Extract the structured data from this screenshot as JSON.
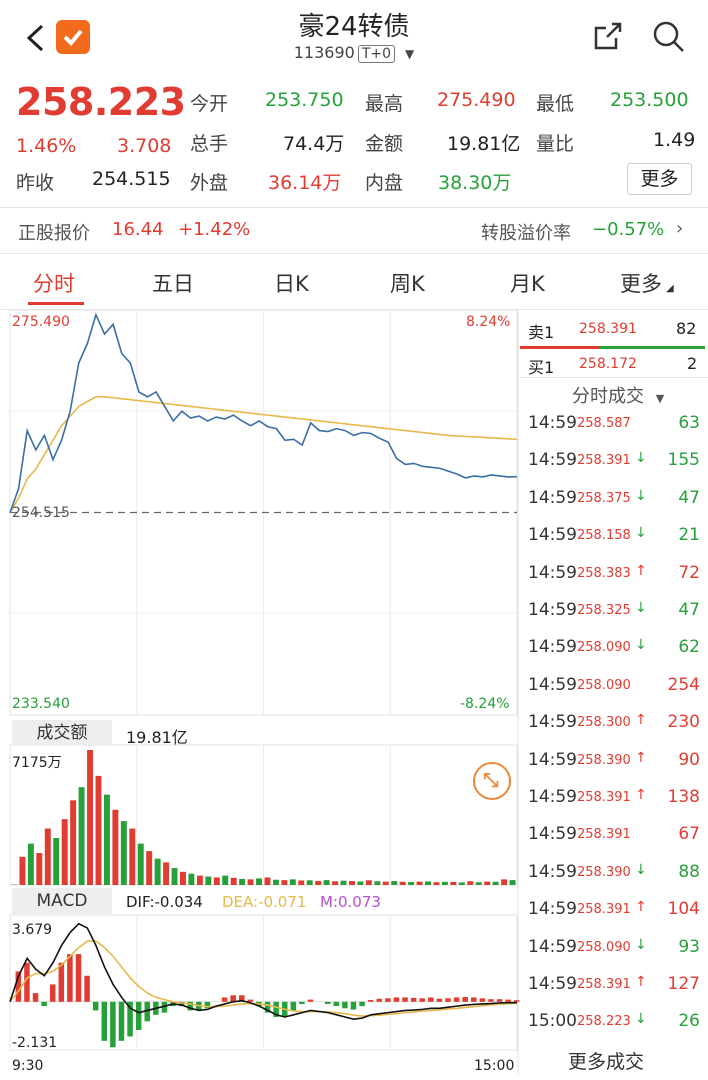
{
  "header": {
    "title": "豪24转债",
    "code": "113690",
    "badge": "T+0"
  },
  "quote": {
    "price": "258.223",
    "change_pct": "1.46%",
    "change": "3.708",
    "prev_close_label": "昨收",
    "prev_close": "254.515",
    "open_label": "今开",
    "open": "253.750",
    "high_label": "最高",
    "high": "275.490",
    "low_label": "最低",
    "low": "253.500",
    "volume_label": "总手",
    "volume": "74.4万",
    "amount_label": "金额",
    "amount": "19.81亿",
    "vol_ratio_label": "量比",
    "vol_ratio": "1.49",
    "outer_label": "外盘",
    "outer": "36.14万",
    "inner_label": "内盘",
    "inner": "38.30万",
    "more_label": "更多"
  },
  "underlying": {
    "label": "正股报价",
    "price": "16.44",
    "change": "+1.42%",
    "premium_label": "转股溢价率",
    "premium": "−0.57%"
  },
  "tabs": [
    "分时",
    "五日",
    "日K",
    "周K",
    "月K",
    "更多"
  ],
  "price_axis": {
    "top": "275.490",
    "top_pct": "8.24%",
    "bottom": "233.540",
    "bottom_pct": "-8.24%",
    "ref": "254.515"
  },
  "orderbook": {
    "ask_label": "卖1",
    "ask_price": "258.391",
    "ask_vol": "82",
    "bid_label": "买1",
    "bid_price": "258.172",
    "bid_vol": "2",
    "ticks_title": "分时成交",
    "more_ticks": "更多成交"
  },
  "ticks": [
    {
      "time": "14:59",
      "price": "258.587",
      "dir": "",
      "vol": "63",
      "color": "#27a03a"
    },
    {
      "time": "14:59",
      "price": "258.391",
      "dir": "↓",
      "vol": "155",
      "color": "#27a03a"
    },
    {
      "time": "14:59",
      "price": "258.375",
      "dir": "↓",
      "vol": "47",
      "color": "#27a03a"
    },
    {
      "time": "14:59",
      "price": "258.158",
      "dir": "↓",
      "vol": "21",
      "color": "#27a03a"
    },
    {
      "time": "14:59",
      "price": "258.383",
      "dir": "↑",
      "vol": "72",
      "color": "#e03c31"
    },
    {
      "time": "14:59",
      "price": "258.325",
      "dir": "↓",
      "vol": "47",
      "color": "#27a03a"
    },
    {
      "time": "14:59",
      "price": "258.090",
      "dir": "↓",
      "vol": "62",
      "color": "#27a03a"
    },
    {
      "time": "14:59",
      "price": "258.090",
      "dir": "",
      "vol": "254",
      "color": "#e03c31"
    },
    {
      "time": "14:59",
      "price": "258.300",
      "dir": "↑",
      "vol": "230",
      "color": "#e03c31"
    },
    {
      "time": "14:59",
      "price": "258.390",
      "dir": "↑",
      "vol": "90",
      "color": "#e03c31"
    },
    {
      "time": "14:59",
      "price": "258.391",
      "dir": "↑",
      "vol": "138",
      "color": "#e03c31"
    },
    {
      "time": "14:59",
      "price": "258.391",
      "dir": "",
      "vol": "67",
      "color": "#e03c31"
    },
    {
      "time": "14:59",
      "price": "258.390",
      "dir": "↓",
      "vol": "88",
      "color": "#27a03a"
    },
    {
      "time": "14:59",
      "price": "258.391",
      "dir": "↑",
      "vol": "104",
      "color": "#e03c31"
    },
    {
      "time": "14:59",
      "price": "258.090",
      "dir": "↓",
      "vol": "93",
      "color": "#27a03a"
    },
    {
      "time": "14:59",
      "price": "258.391",
      "dir": "↑",
      "vol": "127",
      "color": "#e03c31"
    },
    {
      "time": "15:00",
      "price": "258.223",
      "dir": "↓",
      "vol": "26",
      "color": "#27a03a"
    }
  ],
  "volume_panel": {
    "label": "成交额",
    "total": "19.81亿",
    "max": "7175万"
  },
  "macd_panel": {
    "label": "MACD",
    "dif": "DIF:-0.034",
    "dea": "DEA:-0.071",
    "m": "M:0.073",
    "top": "3.679",
    "bottom": "-2.131"
  },
  "time_axis": {
    "start": "9:30",
    "end": "15:00"
  },
  "colors": {
    "up": "#e03c31",
    "down": "#27a03a",
    "price_line": "#3a6ea5",
    "avg_line": "#e6b94a",
    "dea": "#e6b94a",
    "m": "#b64fd1"
  },
  "chart_data": {
    "type": "line",
    "price_range": [
      233.54,
      275.49
    ],
    "ref_price": 254.515,
    "price": [
      254.5,
      257,
      263,
      261,
      262.5,
      260,
      262,
      265,
      270,
      272,
      275,
      273,
      274,
      271,
      270,
      267,
      266.5,
      267,
      265.5,
      264,
      265,
      264.3,
      264.5,
      264,
      264.4,
      264.2,
      264.6,
      264,
      263.5,
      264,
      263.4,
      263.2,
      262,
      262.1,
      261.5,
      263.8,
      263,
      262.9,
      263.2,
      263,
      262.5,
      262.8,
      262.7,
      262.2,
      261.8,
      260.1,
      259.5,
      259.6,
      259.3,
      259.2,
      259.1,
      258.8,
      258.5,
      258.1,
      258.3,
      258.2,
      258.4,
      258.3,
      258.2,
      258.223
    ],
    "avg": [
      254.5,
      256,
      258,
      259,
      260.5,
      262,
      263.5,
      264.5,
      265.5,
      266,
      266.5,
      266.5,
      266.4,
      266.3,
      266.2,
      266.1,
      266,
      265.9,
      265.8,
      265.7,
      265.6,
      265.5,
      265.4,
      265.3,
      265.2,
      265.1,
      265,
      264.9,
      264.8,
      264.7,
      264.6,
      264.5,
      264.4,
      264.3,
      264.2,
      264.1,
      264,
      263.9,
      263.8,
      263.7,
      263.6,
      263.5,
      263.4,
      263.3,
      263.2,
      263.1,
      263,
      262.9,
      262.8,
      262.7,
      262.6,
      262.5,
      262.45,
      262.4,
      262.35,
      262.3,
      262.25,
      262.2,
      262.15,
      262.1
    ],
    "volume_max": 7175,
    "volume": [
      20,
      1500,
      2200,
      1700,
      3000,
      2500,
      3500,
      4500,
      5200,
      7175,
      5800,
      4800,
      4000,
      3400,
      3000,
      2200,
      1800,
      1400,
      1200,
      900,
      700,
      600,
      500,
      450,
      400,
      500,
      380,
      320,
      300,
      350,
      400,
      280,
      260,
      300,
      240,
      250,
      220,
      260,
      200,
      230,
      210,
      190,
      250,
      200,
      180,
      210,
      170,
      160,
      180,
      190,
      150,
      170,
      160,
      140,
      200,
      150,
      180,
      170,
      300,
      260
    ],
    "volume_dir": [
      1,
      1,
      0,
      1,
      1,
      0,
      1,
      1,
      0,
      1,
      1,
      0,
      1,
      0,
      1,
      0,
      1,
      0,
      1,
      0,
      1,
      0,
      1,
      0,
      1,
      0,
      1,
      0,
      1,
      0,
      1,
      0,
      1,
      0,
      1,
      0,
      1,
      0,
      1,
      0,
      1,
      0,
      1,
      0,
      1,
      0,
      1,
      0,
      1,
      0,
      1,
      0,
      1,
      0,
      1,
      0,
      1,
      0,
      1,
      0
    ],
    "macd_range": [
      -2.131,
      3.679
    ],
    "macd_dif": [
      0,
      1.2,
      2,
      1.5,
      1.2,
      1.8,
      2.6,
      3.2,
      3.6,
      3.4,
      2.6,
      1.6,
      0.8,
      0.2,
      -0.3,
      -0.5,
      -0.4,
      -0.3,
      -0.2,
      -0.1,
      -0.15,
      -0.3,
      -0.4,
      -0.35,
      -0.2,
      -0.1,
      0,
      0.05,
      -0.05,
      -0.2,
      -0.4,
      -0.6,
      -0.7,
      -0.6,
      -0.5,
      -0.4,
      -0.45,
      -0.5,
      -0.6,
      -0.7,
      -0.8,
      -0.75,
      -0.6,
      -0.55,
      -0.5,
      -0.45,
      -0.4,
      -0.38,
      -0.35,
      -0.3,
      -0.3,
      -0.25,
      -0.2,
      -0.15,
      -0.12,
      -0.1,
      -0.08,
      -0.05,
      -0.04,
      -0.034
    ],
    "macd_dea": [
      0,
      0.5,
      1.1,
      1.3,
      1.3,
      1.4,
      1.7,
      2.1,
      2.5,
      2.8,
      2.8,
      2.5,
      2.1,
      1.6,
      1.1,
      0.7,
      0.4,
      0.2,
      0.1,
      0,
      -0.05,
      -0.1,
      -0.18,
      -0.22,
      -0.22,
      -0.2,
      -0.15,
      -0.1,
      -0.08,
      -0.1,
      -0.15,
      -0.25,
      -0.35,
      -0.42,
      -0.45,
      -0.45,
      -0.45,
      -0.46,
      -0.5,
      -0.55,
      -0.62,
      -0.66,
      -0.64,
      -0.62,
      -0.58,
      -0.55,
      -0.5,
      -0.47,
      -0.43,
      -0.4,
      -0.37,
      -0.33,
      -0.3,
      -0.26,
      -0.22,
      -0.18,
      -0.14,
      -0.11,
      -0.09,
      -0.071
    ],
    "macd_m": [
      0,
      1.4,
      1.8,
      0.4,
      -0.2,
      0.8,
      1.8,
      2.2,
      2.2,
      1.2,
      -0.4,
      -1.8,
      -2.1,
      -1.8,
      -1.6,
      -1.3,
      -0.9,
      -0.6,
      -0.5,
      -0.2,
      -0.2,
      -0.4,
      -0.4,
      -0.3,
      0,
      0.2,
      0.3,
      0.3,
      0.1,
      -0.2,
      -0.5,
      -0.7,
      -0.7,
      -0.4,
      -0.1,
      0.1,
      0,
      -0.1,
      -0.2,
      -0.3,
      -0.36,
      -0.2,
      0.08,
      0.14,
      0.16,
      0.2,
      0.2,
      0.18,
      0.16,
      0.2,
      0.14,
      0.16,
      0.2,
      0.22,
      0.2,
      0.16,
      0.12,
      0.12,
      0.1,
      0.073
    ]
  }
}
